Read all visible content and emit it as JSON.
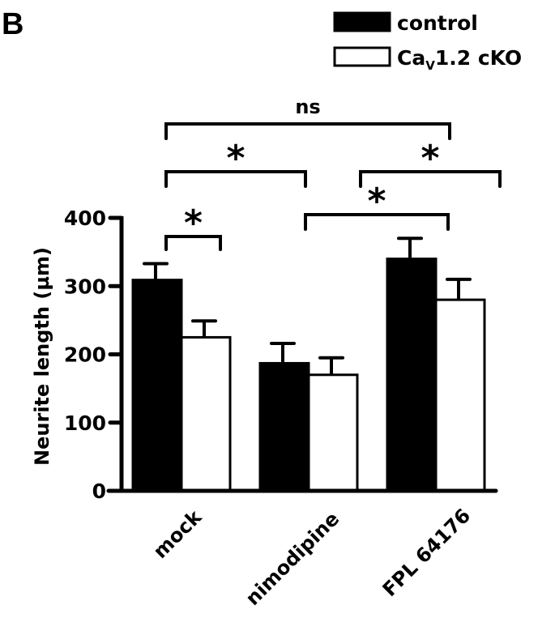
{
  "panel_label": "B",
  "chart_data": {
    "type": "bar",
    "title": "",
    "xlabel": "",
    "ylabel": "Neurite length (µm)",
    "ylim": [
      0,
      400
    ],
    "yticks": [
      0,
      100,
      200,
      300,
      400
    ],
    "ytick_labels": [
      "0",
      "100",
      "200",
      "300",
      "400"
    ],
    "categories": [
      "mock",
      "nimodipine",
      "FPL 64176"
    ],
    "legend_position": "top-right",
    "series": [
      {
        "name": "control",
        "name_main": "control",
        "name_sub": "",
        "name_rest": "",
        "color": "#000000",
        "values": [
          309,
          187,
          340
        ],
        "error": [
          24,
          29,
          30
        ]
      },
      {
        "name": "CaV1.2 cKO",
        "name_main": "Ca",
        "name_sub": "V",
        "name_rest": "1.2 cKO",
        "color": "#ffffff",
        "values": [
          225,
          170,
          280
        ],
        "error": [
          24,
          25,
          30
        ]
      }
    ],
    "significance": [
      {
        "label": "ns",
        "between": "mock control vs FPL 64176 control"
      },
      {
        "label": "*",
        "between": "mock control vs nimodipine control"
      },
      {
        "label": "*",
        "between": "nimodipine cKO vs FPL 64176 cKO"
      },
      {
        "label": "*",
        "between": "nimodipine control vs FPL 64176 control"
      },
      {
        "label": "*",
        "between": "mock control vs mock cKO"
      }
    ]
  }
}
